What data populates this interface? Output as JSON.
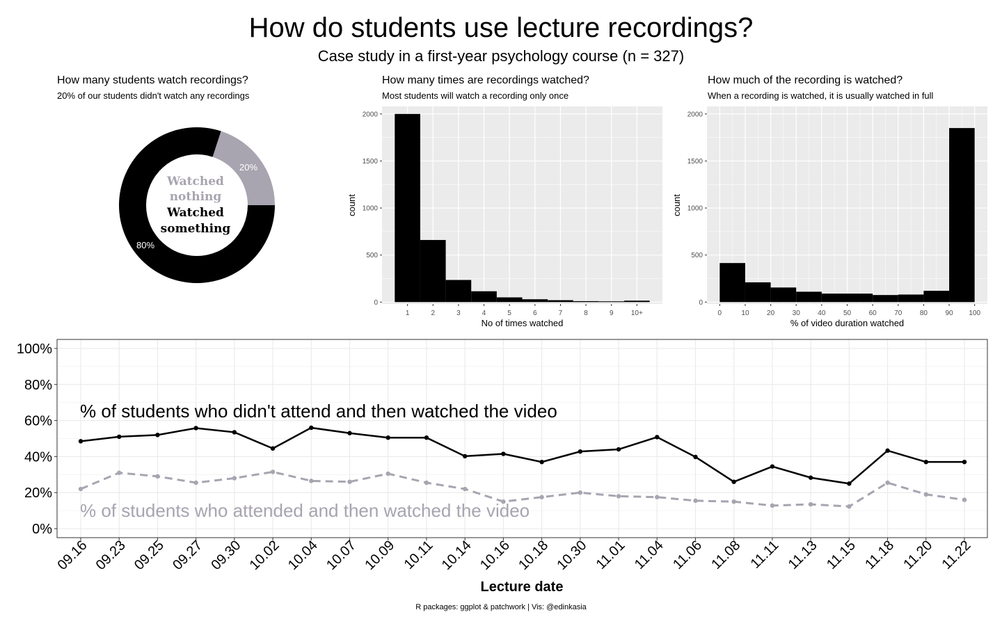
{
  "title": "How do students use lecture recordings?",
  "subtitle": "Case study in a first-year psychology course (n = 327)",
  "caption": "R packages: ggplot & patchwork | Vis: @edinkasia",
  "colors": {
    "black": "#000000",
    "grey": "#a8a4b0",
    "panel": "#ebebeb",
    "grid": "#ffffff",
    "lgrid": "#ebebeb"
  },
  "chart_data": [
    {
      "type": "pie",
      "title": "How many students watch recordings?",
      "subtitle": "20% of our students didn't watch any recordings",
      "categories": [
        "Watched nothing",
        "Watched something"
      ],
      "values": [
        20,
        80
      ],
      "slice_labels": [
        "20%",
        "80%"
      ],
      "center_labels": [
        "Watched",
        "nothing",
        "Watched",
        "something"
      ]
    },
    {
      "type": "bar",
      "title": "How many times are recordings watched?",
      "subtitle": "Most students will watch a recording only once",
      "xlabel": "No of times watched",
      "ylabel": "count",
      "categories": [
        "1",
        "2",
        "3",
        "4",
        "5",
        "6",
        "7",
        "8",
        "9",
        "10+"
      ],
      "values": [
        2000,
        660,
        235,
        115,
        50,
        30,
        20,
        10,
        8,
        15
      ],
      "ylim": [
        -20,
        2080
      ],
      "yticks": [
        0,
        500,
        1000,
        1500,
        2000
      ]
    },
    {
      "type": "bar",
      "title": "How much of the recording is watched?",
      "subtitle": "When a recording is watched, it is usually watched in full",
      "xlabel": "% of video duration watched",
      "ylabel": "count",
      "bins": [
        [
          0,
          10
        ],
        [
          10,
          20
        ],
        [
          20,
          30
        ],
        [
          30,
          40
        ],
        [
          40,
          50
        ],
        [
          50,
          60
        ],
        [
          60,
          70
        ],
        [
          70,
          80
        ],
        [
          80,
          90
        ],
        [
          90,
          100
        ]
      ],
      "values": [
        415,
        210,
        155,
        110,
        90,
        90,
        75,
        80,
        120,
        1850
      ],
      "xlim": [
        -5,
        105
      ],
      "xticks": [
        0,
        10,
        20,
        30,
        40,
        50,
        60,
        70,
        80,
        90,
        100
      ],
      "ylim": [
        -20,
        2080
      ],
      "yticks": [
        0,
        500,
        1000,
        1500,
        2000
      ]
    },
    {
      "type": "line",
      "xlabel": "Lecture date",
      "ylabel": "",
      "categories": [
        "09.16",
        "09.23",
        "09.25",
        "09.27",
        "09.30",
        "10.02",
        "10.04",
        "10.07",
        "10.09",
        "10.11",
        "10.14",
        "10.16",
        "10.18",
        "10.30",
        "11.01",
        "11.04",
        "11.06",
        "11.08",
        "11.11",
        "11.13",
        "11.15",
        "11.18",
        "11.20",
        "11.22"
      ],
      "ylim": [
        -5,
        105
      ],
      "yticks": [
        0,
        20,
        40,
        60,
        80,
        100
      ],
      "ytick_labels": [
        "0%",
        "20%",
        "40%",
        "60%",
        "80%",
        "100%"
      ],
      "series": [
        {
          "name": "% of students who didn't attend and then watched the video",
          "style": "solid",
          "color": "#000000",
          "values": [
            48.5,
            51,
            52,
            55.8,
            53.5,
            44.5,
            56,
            53,
            50.5,
            50.5,
            40.2,
            41.5,
            37,
            42.8,
            44,
            50.8,
            39.8,
            26,
            34.5,
            28.3,
            25,
            43.3,
            37,
            37
          ]
        },
        {
          "name": "% of students who attended and then watched the video",
          "style": "dashed",
          "color": "#a8a4b0",
          "values": [
            22,
            31,
            29,
            25.5,
            28,
            31.5,
            26.5,
            26,
            30.5,
            25.5,
            22,
            15,
            17.5,
            20,
            18,
            17.5,
            15.5,
            15,
            12.8,
            13.5,
            12.3,
            25.5,
            19,
            16
          ]
        }
      ]
    }
  ]
}
